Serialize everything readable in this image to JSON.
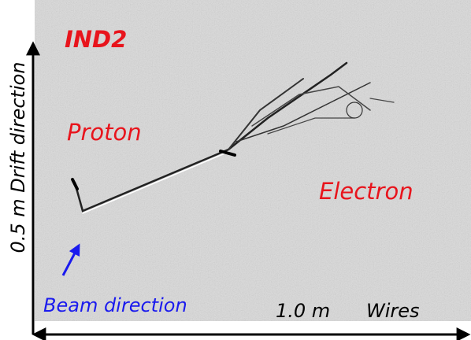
{
  "labels": {
    "detector": "IND2",
    "proton": "Proton",
    "electron": "Electron",
    "beam": "Beam direction",
    "scale_x": "1.0 m",
    "x_axis": "Wires",
    "y_axis": "0.5 m Drift direction"
  }
}
